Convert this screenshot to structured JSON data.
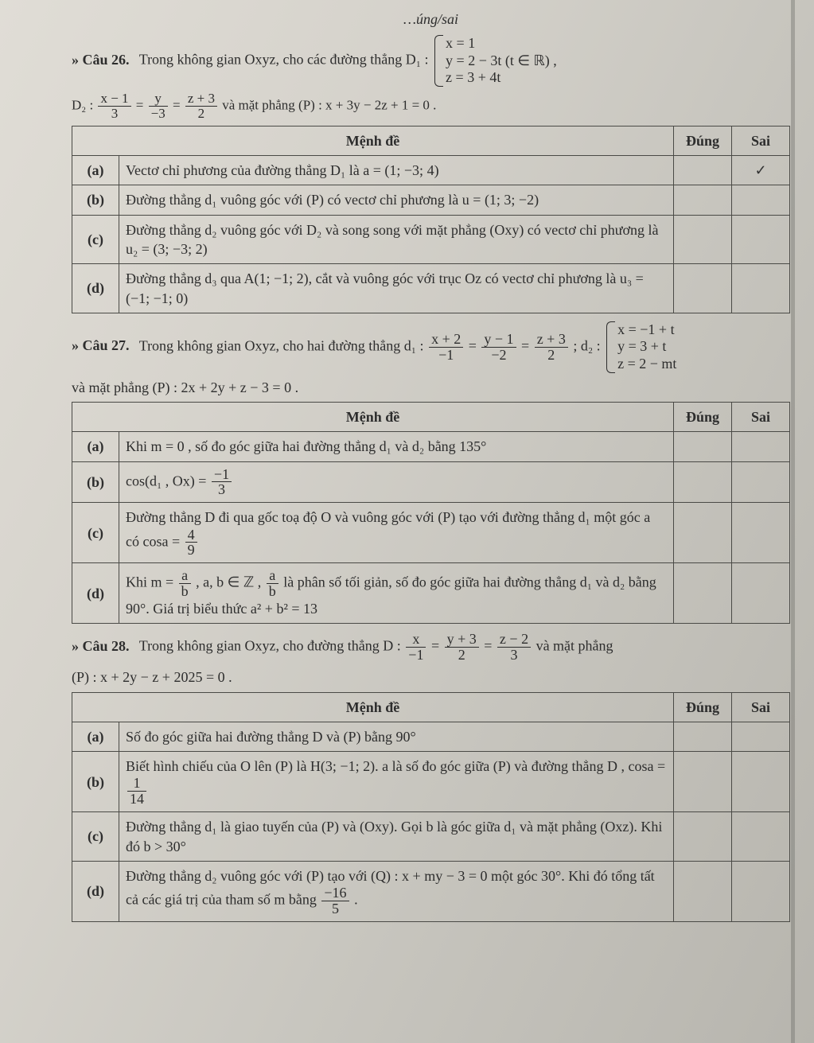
{
  "page": {
    "background_color": "#d6d3cc",
    "text_color": "#2d2d2d",
    "font_family": "Times New Roman",
    "base_fontsize_pt": 14,
    "border_color": "#4a4a46"
  },
  "header_fragment": "…úng/sai",
  "table_headers": {
    "menhde": "Mệnh đề",
    "dung": "Đúng",
    "sai": "Sai"
  },
  "q26": {
    "label": "» Câu 26.",
    "intro_a": "Trong không gian Oxyz, cho các đường thẳng D₁ :",
    "d1_sys": {
      "l1": "x = 1",
      "l2": "y = 2 − 3t (t ∈ ℝ) ,",
      "l3": "z = 3 + 4t"
    },
    "intro_b": "D₂ :",
    "d2_lhs": {
      "n1": "x − 1",
      "d1": "3",
      "n2": "y",
      "d2": "−3",
      "n3": "z + 3",
      "d3": "2"
    },
    "intro_c": " và mặt phẳng (P) : x + 3y − 2z + 1 = 0 .",
    "rows": [
      {
        "key": "(a)",
        "text": "Vectơ chỉ phương của đường thẳng D₁ là a = (1; −3; 4)",
        "dung": "",
        "sai": "✓"
      },
      {
        "key": "(b)",
        "text": "Đường thẳng d₁ vuông góc với (P) có vectơ chỉ phương là u = (1; 3; −2)",
        "dung": "",
        "sai": ""
      },
      {
        "key": "(c)",
        "text": "Đường thẳng d₂ vuông góc với D₂ và song song với mặt phẳng (Oxy) có vectơ chỉ phương là u₂ = (3; −3; 2)",
        "dung": "",
        "sai": ""
      },
      {
        "key": "(d)",
        "text": "Đường thẳng d₃ qua A(1; −1; 2), cắt và vuông góc với trục Oz có vectơ chỉ phương là u₃ = (−1; −1; 0)",
        "dung": "",
        "sai": ""
      }
    ]
  },
  "q27": {
    "label": "» Câu 27.",
    "intro_a": "Trong không gian Oxyz, cho hai đường thẳng d₁ :",
    "d1": {
      "n1": "x + 2",
      "d1": "−1",
      "n2": "y − 1",
      "d2": "−2",
      "n3": "z + 3",
      "d3": "2"
    },
    "intro_b": " ; d₂ :",
    "d2_sys": {
      "l1": "x = −1 + t",
      "l2": "y = 3 + t",
      "l3": "z = 2 − mt"
    },
    "intro_c": "và mặt phẳng (P) : 2x + 2y + z − 3 = 0 .",
    "rows": [
      {
        "key": "(a)",
        "text": "Khi m = 0 , số đo góc giữa hai đường thẳng d₁ và d₂ bằng 135°",
        "dung": "",
        "sai": ""
      },
      {
        "key": "(b)",
        "pre": "cos(d₁ , Ox) = ",
        "frac": {
          "n": "−1",
          "d": "3"
        },
        "dung": "",
        "sai": ""
      },
      {
        "key": "(c)",
        "pre": "Đường thẳng D đi qua gốc toạ độ O và vuông góc với (P) tạo với đường thẳng d₁ một góc a có cosa = ",
        "frac": {
          "n": "4",
          "d": "9"
        },
        "dung": "",
        "sai": ""
      },
      {
        "key": "(d)",
        "pre": "Khi m = ",
        "frac": {
          "n": "a",
          "d": "b"
        },
        "mid": ", a, b ∈ ℤ , ",
        "frac2": {
          "n": "a",
          "d": "b"
        },
        "post": " là phân số tối giản, số đo góc giữa hai đường thẳng d₁ và d₂ bằng 90°. Giá trị biểu thức a² + b² = 13",
        "dung": "",
        "sai": ""
      }
    ]
  },
  "q28": {
    "label": "» Câu 28.",
    "intro_a": "Trong không gian Oxyz, cho đường thẳng D :",
    "d": {
      "n1": "x",
      "d1": "−1",
      "n2": "y + 3",
      "d2": "2",
      "n3": "z − 2",
      "d3": "3"
    },
    "intro_b": " và mặt phẳng",
    "intro_c": "(P) : x + 2y − z + 2025 = 0 .",
    "rows": [
      {
        "key": "(a)",
        "text": "Số đo góc giữa hai đường thẳng D và (P) bằng 90°",
        "dung": "",
        "sai": ""
      },
      {
        "key": "(b)",
        "pre": "Biết hình chiếu của O lên (P) là H(3; −1; 2). a là số đo góc giữa (P) và đường thẳng D , cosa = ",
        "frac": {
          "n": "1",
          "d": "14"
        },
        "dung": "",
        "sai": ""
      },
      {
        "key": "(c)",
        "text": "Đường thẳng d₁ là giao tuyến của (P) và (Oxy). Gọi b là góc giữa d₁ và mặt phẳng (Oxz). Khi đó b > 30°",
        "dung": "",
        "sai": ""
      },
      {
        "key": "(d)",
        "pre": "Đường thẳng d₂ vuông góc với (P) tạo với (Q) : x + my − 3 = 0 một góc 30°. Khi đó tổng tất cả các giá trị của tham số m bằng ",
        "frac": {
          "n": "−16",
          "d": "5"
        },
        "post": ".",
        "dung": "",
        "sai": ""
      }
    ]
  }
}
